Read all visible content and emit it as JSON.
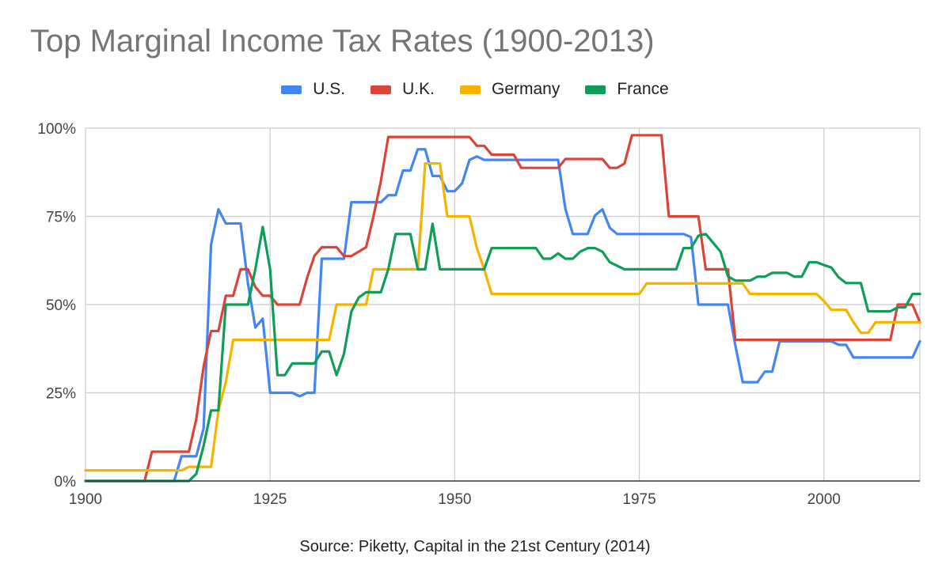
{
  "chart_data": {
    "type": "line",
    "title": "Top Marginal Income Tax Rates (1900-2013)",
    "source": "Source: Piketty, Capital in the 21st Century (2014)",
    "xlabel": "",
    "ylabel": "",
    "xlim": [
      1900,
      2013
    ],
    "ylim": [
      0,
      100
    ],
    "x_ticks": [
      1900,
      1925,
      1950,
      1975,
      2000
    ],
    "y_ticks": [
      0,
      25,
      50,
      75,
      100
    ],
    "y_tick_labels": [
      "0%",
      "25%",
      "50%",
      "75%",
      "100%"
    ],
    "grid": true,
    "legend_position": "top",
    "series": [
      {
        "name": "U.S.",
        "color": "#4285F4",
        "points": [
          [
            1900,
            0
          ],
          [
            1912,
            0
          ],
          [
            1913,
            7
          ],
          [
            1915,
            7
          ],
          [
            1916,
            15
          ],
          [
            1917,
            67
          ],
          [
            1918,
            77
          ],
          [
            1919,
            73
          ],
          [
            1921,
            73
          ],
          [
            1922,
            56
          ],
          [
            1923,
            43.5
          ],
          [
            1924,
            46
          ],
          [
            1925,
            25
          ],
          [
            1928,
            25
          ],
          [
            1929,
            24
          ],
          [
            1930,
            25
          ],
          [
            1931,
            25
          ],
          [
            1932,
            63
          ],
          [
            1935,
            63
          ],
          [
            1936,
            79
          ],
          [
            1940,
            79
          ],
          [
            1941,
            81
          ],
          [
            1942,
            81
          ],
          [
            1943,
            88
          ],
          [
            1944,
            88
          ],
          [
            1945,
            94
          ],
          [
            1946,
            94
          ],
          [
            1947,
            86.45
          ],
          [
            1948,
            86.45
          ],
          [
            1949,
            82.13
          ],
          [
            1950,
            82.13
          ],
          [
            1951,
            84.36
          ],
          [
            1952,
            91
          ],
          [
            1953,
            92
          ],
          [
            1954,
            91
          ],
          [
            1964,
            91
          ],
          [
            1965,
            77
          ],
          [
            1966,
            70
          ],
          [
            1968,
            70
          ],
          [
            1969,
            75.25
          ],
          [
            1970,
            77
          ],
          [
            1971,
            71.75
          ],
          [
            1972,
            70
          ],
          [
            1981,
            70
          ],
          [
            1982,
            69.13
          ],
          [
            1983,
            50
          ],
          [
            1987,
            50
          ],
          [
            1988,
            38.5
          ],
          [
            1989,
            28
          ],
          [
            1991,
            28
          ],
          [
            1992,
            31
          ],
          [
            1993,
            31
          ],
          [
            1994,
            39.6
          ],
          [
            2001,
            39.6
          ],
          [
            2002,
            38.6
          ],
          [
            2003,
            38.6
          ],
          [
            2004,
            35
          ],
          [
            2012,
            35
          ],
          [
            2013,
            39.6
          ]
        ]
      },
      {
        "name": "U.K.",
        "color": "#DB4437",
        "points": [
          [
            1900,
            0
          ],
          [
            1908,
            0
          ],
          [
            1909,
            8.3
          ],
          [
            1914,
            8.3
          ],
          [
            1915,
            17.5
          ],
          [
            1916,
            32.5
          ],
          [
            1917,
            42.5
          ],
          [
            1918,
            42.5
          ],
          [
            1919,
            52.5
          ],
          [
            1920,
            52.5
          ],
          [
            1921,
            60
          ],
          [
            1922,
            60
          ],
          [
            1923,
            55
          ],
          [
            1924,
            52.5
          ],
          [
            1925,
            52.5
          ],
          [
            1926,
            50
          ],
          [
            1929,
            50
          ],
          [
            1930,
            57.5
          ],
          [
            1931,
            63.8
          ],
          [
            1932,
            66.25
          ],
          [
            1934,
            66.25
          ],
          [
            1935,
            63.75
          ],
          [
            1936,
            63.75
          ],
          [
            1937,
            65
          ],
          [
            1938,
            66.25
          ],
          [
            1939,
            75
          ],
          [
            1940,
            85
          ],
          [
            1941,
            97.5
          ],
          [
            1952,
            97.5
          ],
          [
            1953,
            95
          ],
          [
            1954,
            95
          ],
          [
            1955,
            92.5
          ],
          [
            1958,
            92.5
          ],
          [
            1959,
            88.75
          ],
          [
            1964,
            88.75
          ],
          [
            1965,
            91.25
          ],
          [
            1970,
            91.25
          ],
          [
            1971,
            88.75
          ],
          [
            1972,
            88.75
          ],
          [
            1973,
            90
          ],
          [
            1974,
            98
          ],
          [
            1978,
            98
          ],
          [
            1979,
            75
          ],
          [
            1983,
            75
          ],
          [
            1984,
            60
          ],
          [
            1987,
            60
          ],
          [
            1988,
            40
          ],
          [
            2009,
            40
          ],
          [
            2010,
            50
          ],
          [
            2012,
            50
          ],
          [
            2013,
            45
          ]
        ]
      },
      {
        "name": "Germany",
        "color": "#F4B400",
        "points": [
          [
            1900,
            3
          ],
          [
            1913,
            3
          ],
          [
            1914,
            4
          ],
          [
            1917,
            4
          ],
          [
            1918,
            20
          ],
          [
            1919,
            28
          ],
          [
            1920,
            40
          ],
          [
            1933,
            40
          ],
          [
            1934,
            50
          ],
          [
            1938,
            50
          ],
          [
            1939,
            60
          ],
          [
            1945,
            60
          ],
          [
            1946,
            90
          ],
          [
            1948,
            90
          ],
          [
            1949,
            75
          ],
          [
            1952,
            75
          ],
          [
            1953,
            66
          ],
          [
            1954,
            60
          ],
          [
            1955,
            53
          ],
          [
            1975,
            53
          ],
          [
            1976,
            56
          ],
          [
            1987,
            56
          ],
          [
            1988,
            56
          ],
          [
            1989,
            56
          ],
          [
            1990,
            53
          ],
          [
            1999,
            53
          ],
          [
            2000,
            51
          ],
          [
            2001,
            48.5
          ],
          [
            2003,
            48.5
          ],
          [
            2004,
            45
          ],
          [
            2005,
            42
          ],
          [
            2006,
            42
          ],
          [
            2007,
            45
          ],
          [
            2013,
            45
          ]
        ]
      },
      {
        "name": "France",
        "color": "#0F9D58",
        "points": [
          [
            1900,
            0
          ],
          [
            1914,
            0
          ],
          [
            1915,
            2
          ],
          [
            1916,
            10
          ],
          [
            1917,
            20
          ],
          [
            1918,
            20
          ],
          [
            1919,
            50
          ],
          [
            1922,
            50
          ],
          [
            1923,
            60
          ],
          [
            1924,
            72
          ],
          [
            1925,
            60
          ],
          [
            1926,
            30
          ],
          [
            1927,
            30
          ],
          [
            1928,
            33.33
          ],
          [
            1931,
            33.33
          ],
          [
            1932,
            36.7
          ],
          [
            1933,
            36.7
          ],
          [
            1934,
            30
          ],
          [
            1935,
            36
          ],
          [
            1936,
            48
          ],
          [
            1937,
            52
          ],
          [
            1938,
            53.5
          ],
          [
            1940,
            53.5
          ],
          [
            1941,
            60
          ],
          [
            1942,
            70
          ],
          [
            1944,
            70
          ],
          [
            1945,
            60
          ],
          [
            1946,
            60
          ],
          [
            1947,
            72.9
          ],
          [
            1948,
            60
          ],
          [
            1954,
            60
          ],
          [
            1955,
            66
          ],
          [
            1961,
            66
          ],
          [
            1962,
            63
          ],
          [
            1963,
            63
          ],
          [
            1964,
            64.5
          ],
          [
            1965,
            63
          ],
          [
            1966,
            63
          ],
          [
            1967,
            65
          ],
          [
            1968,
            66
          ],
          [
            1969,
            66
          ],
          [
            1970,
            65
          ],
          [
            1971,
            62
          ],
          [
            1972,
            61
          ],
          [
            1973,
            60
          ],
          [
            1980,
            60
          ],
          [
            1981,
            66
          ],
          [
            1982,
            66
          ],
          [
            1983,
            69.5
          ],
          [
            1984,
            70
          ],
          [
            1985,
            67.5
          ],
          [
            1986,
            65
          ],
          [
            1987,
            58
          ],
          [
            1988,
            56.8
          ],
          [
            1990,
            56.8
          ],
          [
            1991,
            57.9
          ],
          [
            1992,
            57.9
          ],
          [
            1993,
            59
          ],
          [
            1995,
            59
          ],
          [
            1996,
            57.9
          ],
          [
            1997,
            57.9
          ],
          [
            1998,
            61.99
          ],
          [
            1999,
            61.99
          ],
          [
            2000,
            61.2
          ],
          [
            2001,
            60.5
          ],
          [
            2002,
            57.7
          ],
          [
            2003,
            56.1
          ],
          [
            2005,
            56.1
          ],
          [
            2006,
            48.09
          ],
          [
            2009,
            48.09
          ],
          [
            2010,
            49.2
          ],
          [
            2011,
            49.2
          ],
          [
            2012,
            53
          ],
          [
            2013,
            53
          ]
        ]
      }
    ]
  }
}
